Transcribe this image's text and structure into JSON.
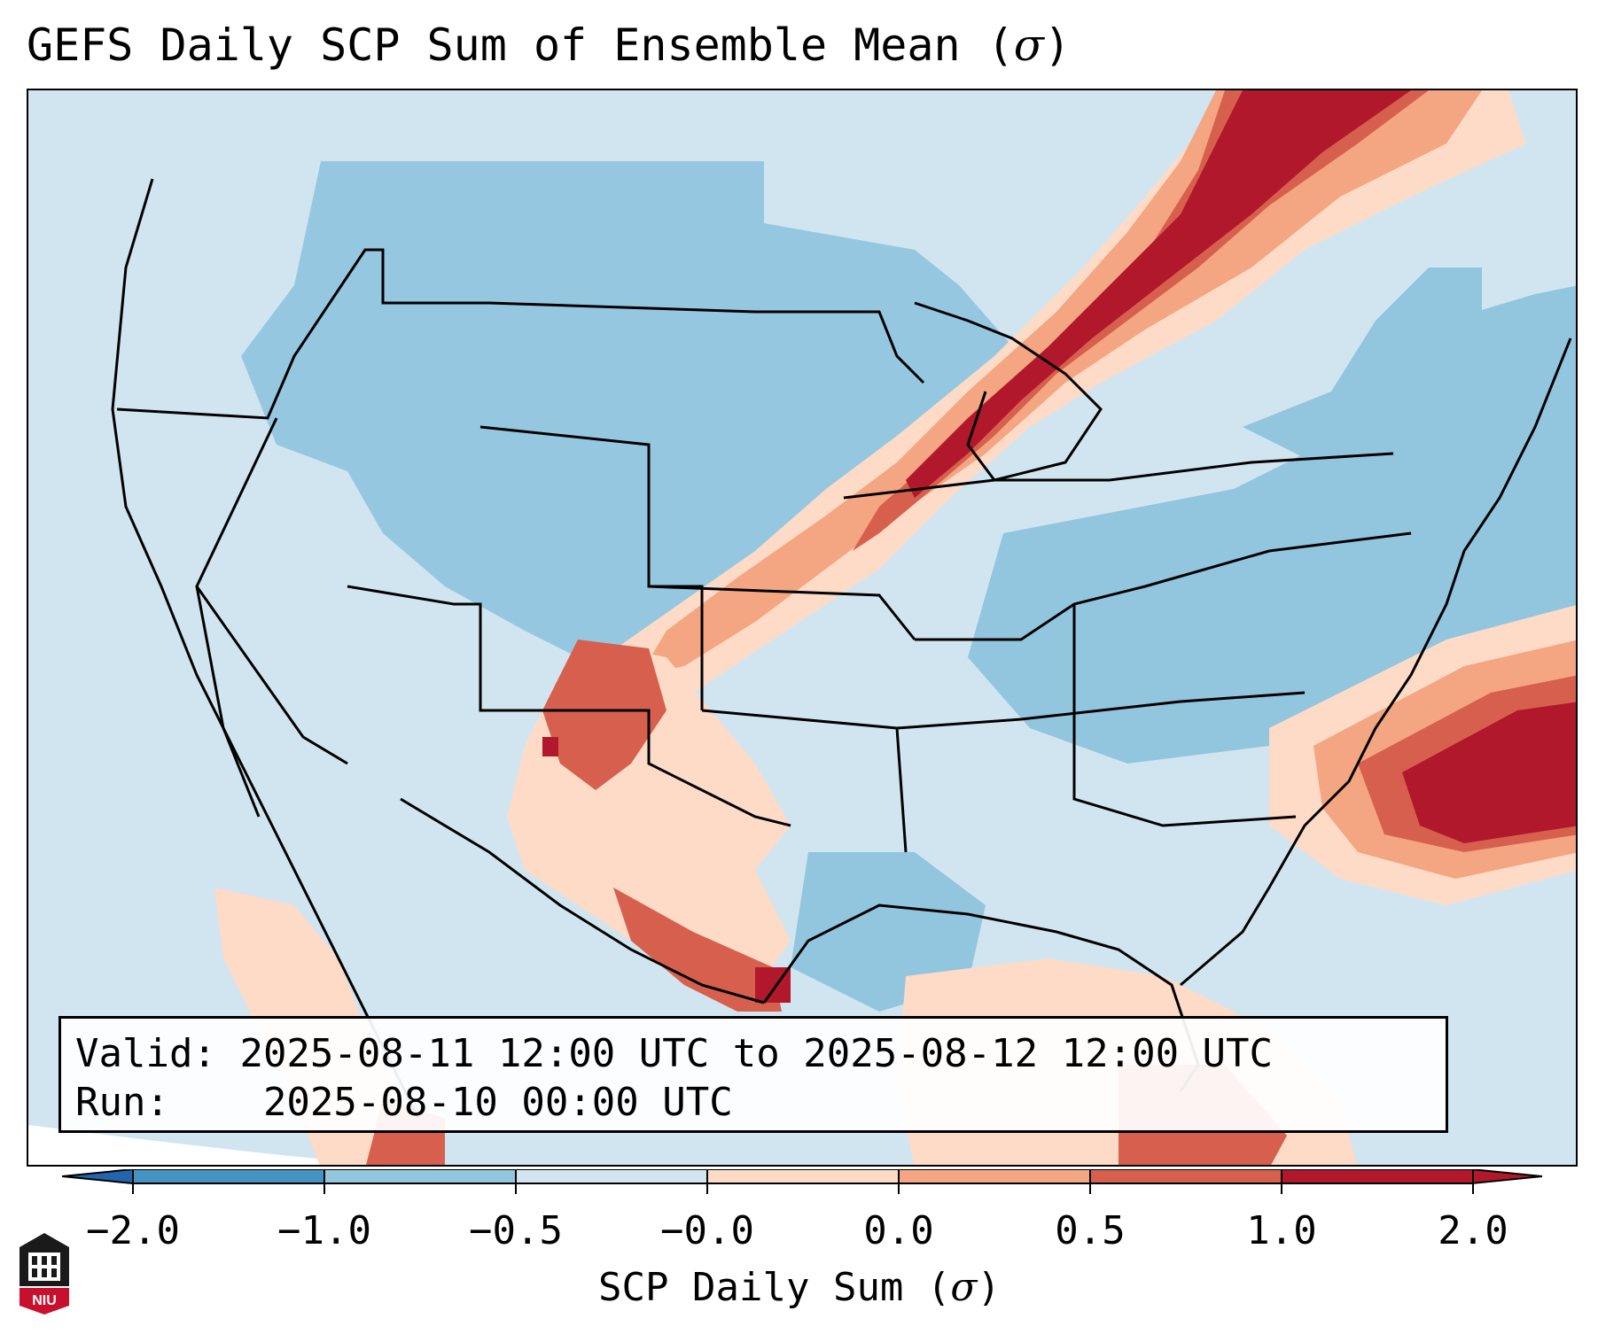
{
  "title": {
    "prefix": "GEFS Daily SCP Sum of Ensemble Mean (",
    "symbol": "σ",
    "suffix": ")"
  },
  "info": {
    "valid_label": "Valid:",
    "valid_value": "2025-08-11 12:00 UTC to 2025-08-12 12:00 UTC",
    "run_label": "Run:",
    "run_value": "2025-08-10 00:00 UTC"
  },
  "colorbar": {
    "label_prefix": "SCP Daily Sum (",
    "label_symbol": "σ",
    "label_suffix": ")",
    "ticks": [
      "−2.0",
      "−1.0",
      "−0.5",
      "−0.0",
      "0.0",
      "0.5",
      "1.0",
      "2.0"
    ],
    "colors": [
      "#4393c3",
      "#92c5de",
      "#d1e5f0",
      "#fddbc7",
      "#f4a582",
      "#d6604d",
      "#b2182b"
    ],
    "extend_low_color": "#2166ac",
    "extend_high_color": "#b2182b"
  },
  "map": {
    "background_color": "#d1e5f0",
    "off_globe_color": "#ffffff",
    "border_color": "#000000"
  },
  "logo": {
    "text": "NIU",
    "color": "#c8102e"
  }
}
